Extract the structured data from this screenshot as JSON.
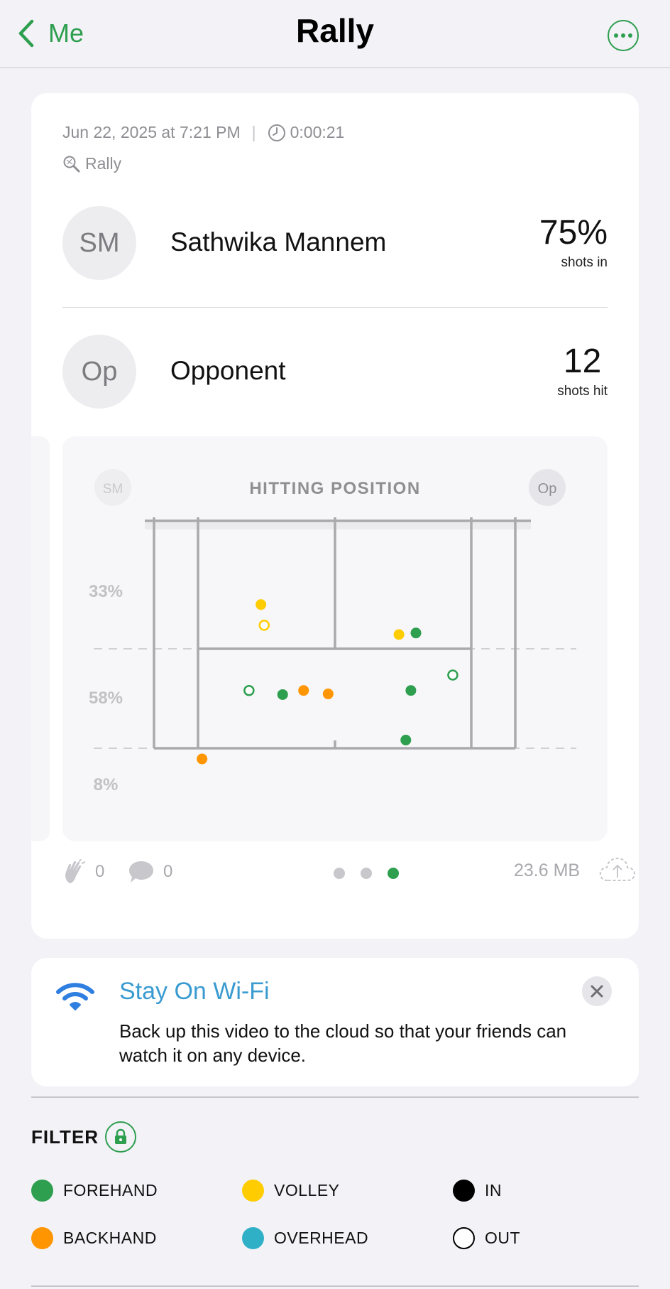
{
  "nav": {
    "back_label": "Me",
    "title": "Rally"
  },
  "session": {
    "datetime": "Jun 22, 2025 at 7:21 PM",
    "duration": "0:00:21",
    "activity": "Rally"
  },
  "players": [
    {
      "initials": "SM",
      "name": "Sathwika Mannem",
      "stat_value": "75%",
      "stat_label": "shots in"
    },
    {
      "initials": "Op",
      "name": "Opponent",
      "stat_value": "12",
      "stat_label": "shots hit"
    }
  ],
  "chart_data": {
    "type": "scatter",
    "title": "HITTING POSITION",
    "left_badge": "SM",
    "right_badge": "Op",
    "zone_labels": [
      "33%",
      "58%",
      "8%"
    ],
    "points": [
      {
        "x": 0.296,
        "y": 0.368,
        "shot": "volley",
        "result": "in"
      },
      {
        "x": 0.305,
        "y": 0.459,
        "shot": "volley",
        "result": "out"
      },
      {
        "x": 0.678,
        "y": 0.5,
        "shot": "volley",
        "result": "in"
      },
      {
        "x": 0.725,
        "y": 0.493,
        "shot": "forehand",
        "result": "in"
      },
      {
        "x": 0.263,
        "y": 0.746,
        "shot": "forehand",
        "result": "out"
      },
      {
        "x": 0.356,
        "y": 0.764,
        "shot": "forehand",
        "result": "in"
      },
      {
        "x": 0.414,
        "y": 0.746,
        "shot": "backhand",
        "result": "in"
      },
      {
        "x": 0.482,
        "y": 0.761,
        "shot": "backhand",
        "result": "in"
      },
      {
        "x": 0.711,
        "y": 0.746,
        "shot": "forehand",
        "result": "in"
      },
      {
        "x": 0.827,
        "y": 0.678,
        "shot": "forehand",
        "result": "out"
      },
      {
        "x": 0.697,
        "y": 0.964,
        "shot": "forehand",
        "result": "in"
      },
      {
        "x": 0.133,
        "y": 1.047,
        "shot": "backhand",
        "result": "in"
      }
    ]
  },
  "footer": {
    "likes": "0",
    "comments": "0",
    "file_size": "23.6 MB",
    "page_index": 3,
    "page_count": 3
  },
  "wifi_banner": {
    "title": "Stay On Wi-Fi",
    "body": "Back up this video to the cloud so that your friends can watch it on any device."
  },
  "filter": {
    "label": "FILTER",
    "items": [
      {
        "label": "FOREHAND",
        "color": "#2e9e4f",
        "style": "filled"
      },
      {
        "label": "VOLLEY",
        "color": "#ffcc00",
        "style": "filled"
      },
      {
        "label": "IN",
        "color": "#000000",
        "style": "filled"
      },
      {
        "label": "BACKHAND",
        "color": "#ff9500",
        "style": "filled"
      },
      {
        "label": "OVERHEAD",
        "color": "#30b0c7",
        "style": "filled"
      },
      {
        "label": "OUT",
        "color": "#000000",
        "style": "outline"
      }
    ]
  },
  "colors": {
    "accent": "#2e9e4f",
    "wifi": "#3a9bd1",
    "forehand": "#2e9e4f",
    "backhand": "#ff9500",
    "volley": "#ffcc00",
    "overhead": "#30b0c7"
  }
}
